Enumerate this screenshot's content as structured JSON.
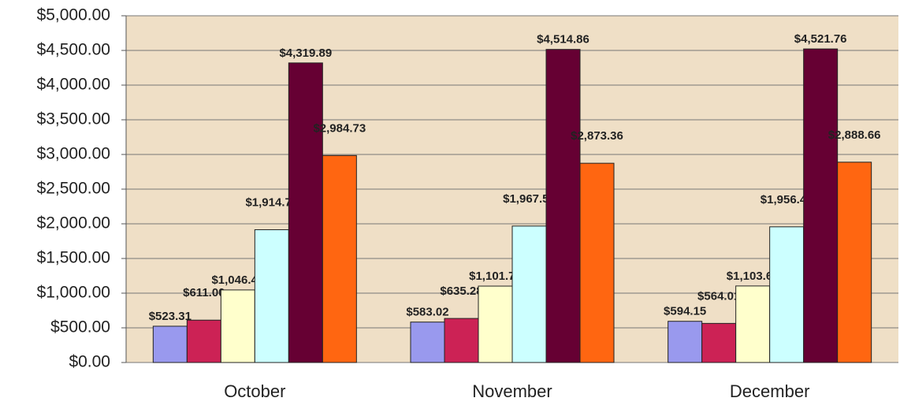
{
  "chart_data": {
    "type": "bar",
    "categories": [
      "October",
      "November",
      "December"
    ],
    "series": [
      {
        "color": "#9999ee",
        "values": [
          523.31,
          583.02,
          594.15
        ],
        "value_labels": [
          "$523.31",
          "$583.02",
          "$594.15"
        ]
      },
      {
        "color": "#cc2255",
        "values": [
          611.0,
          635.28,
          564.01
        ],
        "value_labels": [
          "$611.00",
          "$635.28",
          "$564.01"
        ]
      },
      {
        "color": "#ffffcc",
        "values": [
          1046.43,
          1101.75,
          1103.64
        ],
        "value_labels": [
          "$1,046.43",
          "$1,101.75",
          "$1,103.64"
        ]
      },
      {
        "color": "#ccffff",
        "values": [
          1914.73,
          1967.5,
          1956.49
        ],
        "value_labels": [
          "$1,914.73",
          "$1,967.50",
          "$1,956.49"
        ]
      },
      {
        "color": "#660033",
        "values": [
          4319.89,
          4514.86,
          4521.76
        ],
        "value_labels": [
          "$4,319.89",
          "$4,514.86",
          "$4,521.76"
        ]
      },
      {
        "color": "#ff6611",
        "values": [
          2984.73,
          2873.36,
          2888.66
        ],
        "value_labels": [
          "$2,984.73",
          "$2,873.36",
          "$2,888.66"
        ]
      }
    ],
    "ylim": [
      0,
      5000
    ],
    "yticks": [
      {
        "value": 0,
        "label": "$0.00"
      },
      {
        "value": 500,
        "label": "$500.00"
      },
      {
        "value": 1000,
        "label": "$1,000.00"
      },
      {
        "value": 1500,
        "label": "$1,500.00"
      },
      {
        "value": 2000,
        "label": "$2,000.00"
      },
      {
        "value": 2500,
        "label": "$2,500.00"
      },
      {
        "value": 3000,
        "label": "$3,000.00"
      },
      {
        "value": 3500,
        "label": "$3,500.00"
      },
      {
        "value": 4000,
        "label": "$4,000.00"
      },
      {
        "value": 4500,
        "label": "$4,500.00"
      },
      {
        "value": 5000,
        "label": "$5,000.00"
      }
    ],
    "grid": true
  }
}
